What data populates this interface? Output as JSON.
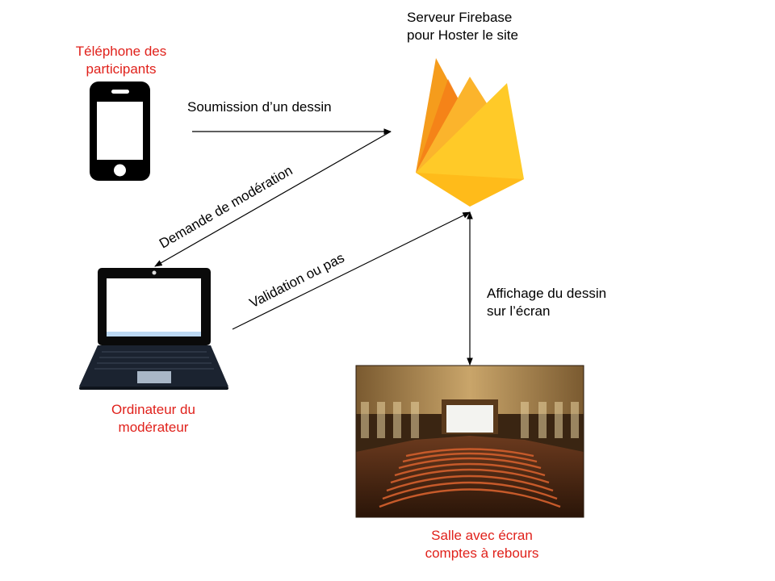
{
  "nodes": {
    "phone_label": [
      "Téléphone des",
      "participants"
    ],
    "server_label": [
      "Serveur Firebase",
      "pour Hoster le site"
    ],
    "computer_label": [
      "Ordinateur du",
      "modérateur"
    ],
    "room_label": [
      "Salle avec écran",
      "comptes à rebours"
    ]
  },
  "edges": {
    "submission": "Soumission d’un dessin",
    "moderation_request": "Demande de modération",
    "validation": "Validation ou pas",
    "display": [
      "Affichage du dessin",
      "sur l’écran"
    ]
  },
  "colors": {
    "node_label": "#e0211b",
    "edge_label": "#000000",
    "arrow": "#000000",
    "firebase_left": "#f59c1c",
    "firebase_mid": "#f57f17",
    "firebase_right": "#ffca28"
  },
  "icons": {
    "phone": "smartphone-icon",
    "server": "firebase-logo",
    "computer": "laptop-icon",
    "room": "theater-photo"
  }
}
